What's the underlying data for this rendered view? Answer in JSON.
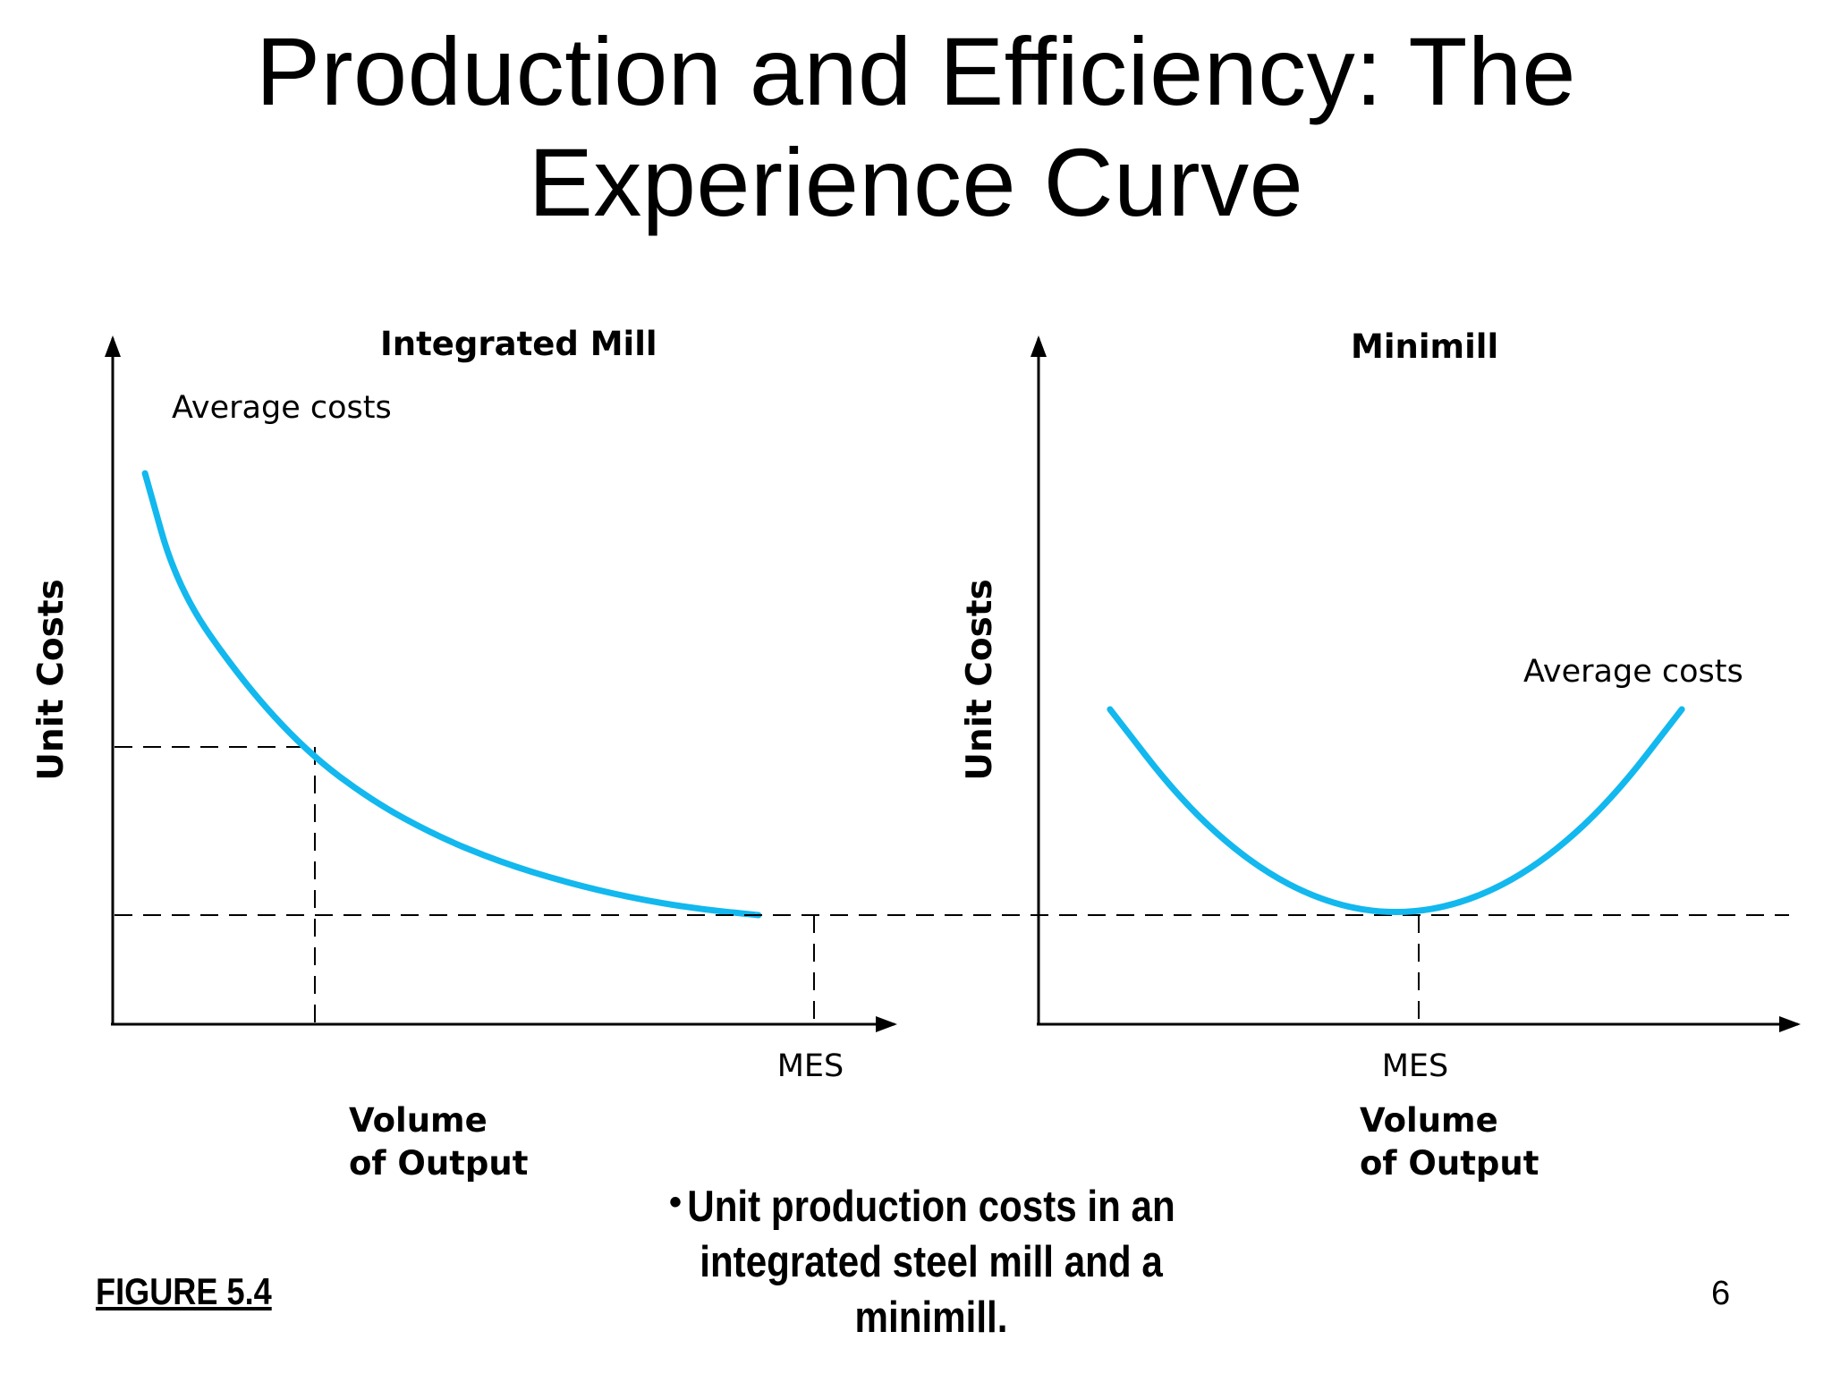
{
  "slide": {
    "title_line1": "Production and Efficiency: The",
    "title_line2": "Experience Curve",
    "bullet": "Unit production costs in an integrated steel mill and a minimill.",
    "figure_label": "FIGURE 5.4",
    "page_number": "6"
  },
  "colors": {
    "curve": "#12b8ee",
    "axis": "#000000",
    "guide": "#000000"
  },
  "chart_data": [
    {
      "type": "line",
      "title": "Integrated Mill",
      "xlabel_line1": "Volume",
      "xlabel_line2": "of Output",
      "ylabel": "Unit Costs",
      "x_tick_label": "MES",
      "series": [
        {
          "name": "Average costs",
          "x": [
            0.05,
            0.1,
            0.2,
            0.3,
            0.4,
            0.5,
            0.6,
            0.7,
            0.8,
            0.9,
            1.0
          ],
          "y": [
            1.0,
            0.74,
            0.53,
            0.37,
            0.26,
            0.18,
            0.12,
            0.075,
            0.04,
            0.015,
            0.0
          ]
        }
      ],
      "x_range": [
        0,
        1.1
      ],
      "y_range": [
        -0.35,
        1.15
      ],
      "guides": [
        {
          "x": 0.28,
          "y": 0.53
        },
        {
          "x": 1.0,
          "y": 0.0
        }
      ],
      "grid": false,
      "legend": "label near curve start"
    },
    {
      "type": "line",
      "title": "Minimill",
      "xlabel_line1": "Volume",
      "xlabel_line2": "of Output",
      "ylabel": "Unit Costs",
      "x_tick_label": "MES",
      "series": [
        {
          "name": "Average costs",
          "x": [
            0.1,
            0.2,
            0.3,
            0.4,
            0.5,
            0.6,
            0.7,
            0.8,
            0.9
          ],
          "y": [
            0.58,
            0.32,
            0.14,
            0.035,
            0.0,
            0.035,
            0.14,
            0.32,
            0.58
          ]
        }
      ],
      "x_range": [
        0,
        1
      ],
      "y_range": [
        -0.35,
        1.15
      ],
      "guides": [
        {
          "x": 0.5,
          "y": 0.0
        }
      ],
      "grid": false,
      "legend": "label near curve end"
    }
  ]
}
